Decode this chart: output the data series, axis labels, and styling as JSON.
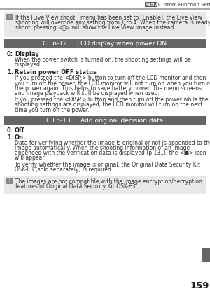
{
  "bg_color": "#ffffff",
  "page_num": "159",
  "header_text": "Custom Function Settings",
  "header_menu_box": "MENU",
  "note1_bg": "#e8e8e8",
  "note1_text_line1": "If the [Live View shoot.] menu has been set to [Enable], the Live View",
  "note1_text_line2": "shooting will override any setting from 1 to 4. When the camera is ready to",
  "note1_text_line3": "shoot, pressing <Ⓜ> will show the Live View image instead.",
  "section1_text": "C.Fn-12     LCD display when power ON",
  "item0_label": "0:",
  "item0_title": "Display",
  "item0_body_line1": "When the power switch is turned on, the shooting settings will be",
  "item0_body_line2": "displayed.",
  "item1_label": "1:",
  "item1_title": "Retain power OFF status",
  "item1_body1_line1": "If you pressed the <DISP.> button to turn off the LCD monitor and then",
  "item1_body1_line2": "you turn off the power, the LCD monitor will not turn on when you turn on",
  "item1_body1_line3": "the power again. This helps to save battery power. The menu screens",
  "item1_body1_line4": "and image playback will still be displayed when used.",
  "item1_body2_line1": "If you pressed the <DISP.> button and then turn off the power while the",
  "item1_body2_line2": "shooting settings are displayed, the LCD monitor will turn on the next",
  "item1_body2_line3": "time you turn on the power.",
  "section2_text": "C.Fn-13     Add original decision data",
  "item2_label": "0:",
  "item2_title": "Off",
  "item3_label": "1:",
  "item3_title": "On",
  "item3_body1_line1": "Data for verifying whether the image is original or not is appended to the",
  "item3_body1_line2": "image automatically. When the shooting information of an image",
  "item3_body1_line3": "appended with the verification data is displayed (p.131), the <■> icon",
  "item3_body1_line4": "will appear.",
  "item3_body2_line1": "To verify whether the image is original, the Original Data Security Kit",
  "item3_body2_line2": "OSK-E3 (sold separately) is required.",
  "note2_bg": "#e8e8e8",
  "note2_text_line1": "The images are not compatible with the image encryption/decryption",
  "note2_text_line2": "features of Original Data Security Kit OSK-E3.",
  "sidebar_color": "#666666",
  "section_bg": "#666666",
  "section_text_color": "#ffffff",
  "header_bar_color": "#aaaaaa",
  "text_color": "#222222",
  "body_color": "#333333",
  "note_bg": "#e8e8e8",
  "icon_bg": "#888888",
  "body_fs": 5.5,
  "label_fs": 6.0,
  "section_fs": 6.5,
  "header_fs": 5.2,
  "page_fs": 9.5
}
